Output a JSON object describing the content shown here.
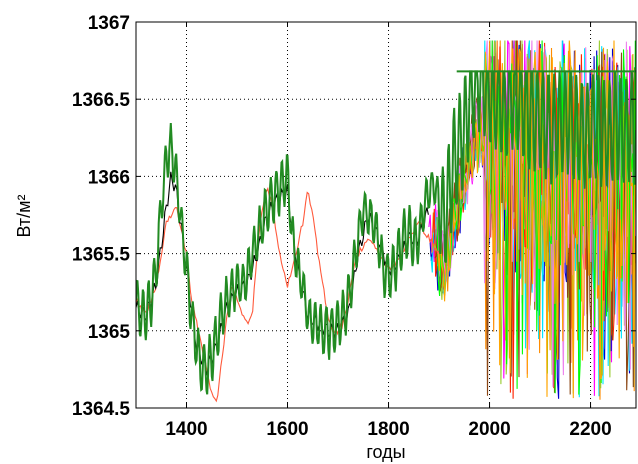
{
  "chart_data": {
    "type": "line",
    "title": "",
    "xlabel": "годы",
    "ylabel": "Вт/м²",
    "xlim": [
      1300,
      2290
    ],
    "ylim": [
      1364.5,
      1367
    ],
    "x_ticks": [
      1400,
      1600,
      1800,
      2000,
      2200
    ],
    "y_ticks": [
      1364.5,
      1365,
      1365.5,
      1366,
      1366.5,
      1367
    ],
    "x_tick_labels": [
      "1400",
      "1600",
      "1800",
      "2000",
      "2200"
    ],
    "y_tick_labels": [
      "1364.5",
      "1365",
      "1365.5",
      "1366",
      "1366.5",
      "1367"
    ],
    "grid": true,
    "legend": "none",
    "colors": {
      "reconstruction": "#228b22",
      "trend": "#ff5a3c",
      "smoothed": "#000000",
      "forecast_palette": [
        "#ff00ff",
        "#0000cd",
        "#00e5ff",
        "#ff8c00",
        "#ff2400",
        "#9acd32",
        "#8b4513",
        "#ee82ee",
        "#00ff00",
        "#ffa500"
      ]
    },
    "series": [
      {
        "key": "reconstruction",
        "x": [
          1300,
          1310,
          1320,
          1330,
          1340,
          1350,
          1360,
          1370,
          1380,
          1390,
          1400,
          1410,
          1420,
          1430,
          1440,
          1450,
          1460,
          1470,
          1480,
          1490,
          1500,
          1510,
          1520,
          1530,
          1540,
          1550,
          1560,
          1570,
          1580,
          1590,
          1600,
          1610,
          1620,
          1630,
          1640,
          1650,
          1660,
          1670,
          1680,
          1690,
          1700,
          1710,
          1720,
          1730,
          1740,
          1750,
          1760,
          1770,
          1780,
          1790,
          1800,
          1810,
          1820,
          1830,
          1840,
          1850,
          1860,
          1870,
          1880,
          1890,
          1900,
          1910,
          1920,
          1930,
          1940,
          1950,
          1960,
          1970,
          1980,
          1990,
          2000,
          2010,
          2020,
          2030,
          2040,
          2050,
          2060,
          2070,
          2080,
          2090,
          2100,
          2110,
          2120,
          2130,
          2140,
          2150,
          2160,
          2170,
          2180,
          2190,
          2200,
          2210,
          2220,
          2230,
          2240,
          2250,
          2260,
          2270,
          2280,
          2290
        ],
        "y": [
          1365.2,
          1365.1,
          1365.1,
          1365.2,
          1365.4,
          1365.8,
          1366.1,
          1366.2,
          1366.0,
          1365.7,
          1365.4,
          1365.1,
          1364.9,
          1364.75,
          1364.75,
          1364.85,
          1364.95,
          1365.1,
          1365.2,
          1365.25,
          1365.3,
          1365.3,
          1365.35,
          1365.5,
          1365.6,
          1365.7,
          1365.8,
          1365.85,
          1365.9,
          1365.95,
          1366.0,
          1365.6,
          1365.4,
          1365.3,
          1365.1,
          1365.05,
          1365.05,
          1365.0,
          1365.0,
          1365.0,
          1365.05,
          1365.1,
          1365.2,
          1365.4,
          1365.6,
          1365.8,
          1365.75,
          1365.7,
          1365.6,
          1365.4,
          1365.35,
          1365.4,
          1365.5,
          1365.6,
          1365.65,
          1365.55,
          1365.6,
          1365.8,
          1365.9,
          1365.95,
          1365.85,
          1365.7,
          1365.9,
          1366.1,
          1366.2,
          1366.3,
          1366.5,
          1366.6,
          1366.65,
          1366.6,
          1366.55,
          1366.5,
          1366.5,
          1366.45,
          1366.5,
          1366.55,
          1366.5,
          1366.45,
          1366.4,
          1366.35,
          1366.4,
          1366.35,
          1366.3,
          1366.3,
          1366.35,
          1366.4,
          1366.35,
          1366.3,
          1366.3,
          1366.25,
          1366.3,
          1366.35,
          1366.3,
          1366.25,
          1366.3,
          1366.35,
          1366.3,
          1366.3,
          1366.35,
          1366.3
        ]
      },
      {
        "key": "trend",
        "x": [
          1300,
          1320,
          1340,
          1360,
          1380,
          1400,
          1410,
          1420,
          1430,
          1440,
          1450,
          1460,
          1470,
          1480,
          1490,
          1500,
          1510,
          1520,
          1530,
          1540,
          1550,
          1560,
          1570,
          1580,
          1590,
          1600,
          1610,
          1620,
          1630,
          1640,
          1650,
          1660,
          1670,
          1680,
          1690,
          1700,
          1710,
          1720,
          1730,
          1740,
          1760,
          1780,
          1800,
          1820,
          1840,
          1860,
          1880,
          1900
        ],
        "y": [
          1365.2,
          1365.1,
          1365.3,
          1365.7,
          1365.8,
          1365.5,
          1365.2,
          1365.05,
          1364.9,
          1364.75,
          1364.6,
          1364.55,
          1364.8,
          1365.1,
          1365.3,
          1365.2,
          1365.1,
          1365.05,
          1365.1,
          1365.5,
          1365.8,
          1365.95,
          1365.8,
          1365.6,
          1365.4,
          1365.3,
          1365.4,
          1365.55,
          1365.7,
          1365.9,
          1365.75,
          1365.5,
          1365.3,
          1365.1,
          1365.0,
          1365.0,
          1365.05,
          1365.2,
          1365.4,
          1365.5,
          1365.6,
          1365.5,
          1365.4,
          1365.45,
          1365.6,
          1365.7,
          1365.6,
          1365.5
        ]
      },
      {
        "key": "smoothed",
        "x": [
          1300,
          1320,
          1340,
          1360,
          1370,
          1380,
          1400,
          1420,
          1440,
          1460,
          1480,
          1500,
          1520,
          1540,
          1560,
          1580,
          1600,
          1620,
          1640,
          1660,
          1680,
          1700,
          1720,
          1740,
          1760,
          1780,
          1800,
          1820,
          1840,
          1860,
          1880
        ],
        "y": [
          1365.15,
          1365.1,
          1365.3,
          1365.8,
          1366.0,
          1365.9,
          1365.4,
          1364.9,
          1364.75,
          1364.9,
          1365.15,
          1365.25,
          1365.3,
          1365.5,
          1365.75,
          1365.85,
          1365.9,
          1365.4,
          1365.1,
          1365.05,
          1365.0,
          1365.0,
          1365.1,
          1365.5,
          1365.75,
          1365.6,
          1365.4,
          1365.45,
          1365.6,
          1365.6,
          1365.8
        ]
      }
    ],
    "forecast": {
      "x_start": 1880,
      "x_end": 2290,
      "y_min": 1364.55,
      "y_max": 1366.88,
      "envelope_upper": 1366.68,
      "envelope_lower_mean": 1365.3
    }
  }
}
